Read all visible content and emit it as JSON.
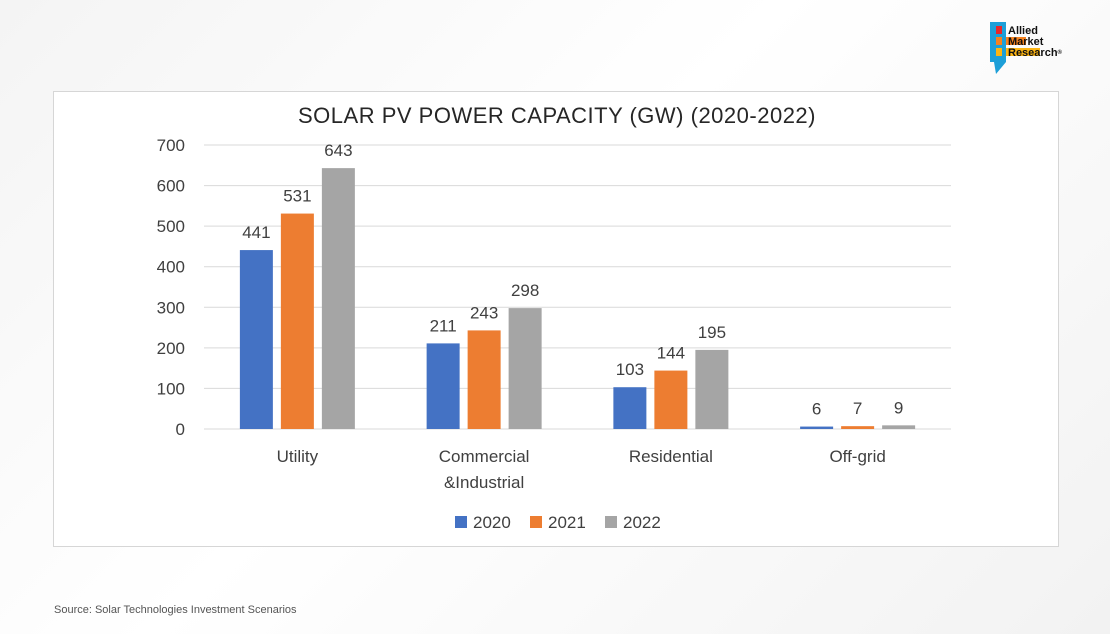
{
  "logo": {
    "line1": "Allied",
    "line2": "Market",
    "line3": "Research",
    "reg": "®"
  },
  "source": "Source: Solar Technologies Investment Scenarios",
  "colors": {
    "2020": "#4472c4",
    "2021": "#ed7d31",
    "2022": "#a5a5a5",
    "grid": "#d9d9d9",
    "text": "#404040"
  },
  "chart_data": {
    "type": "bar",
    "title": "SOLAR PV POWER CAPACITY (GW) (2020-2022)",
    "categories": [
      "Utility",
      "Commercial\n&Industrial",
      "Residential",
      "Off-grid"
    ],
    "series": [
      {
        "name": "2020",
        "values": [
          441,
          211,
          103,
          6
        ]
      },
      {
        "name": "2021",
        "values": [
          531,
          243,
          144,
          7
        ]
      },
      {
        "name": "2022",
        "values": [
          643,
          298,
          195,
          9
        ]
      }
    ],
    "ylim": [
      0,
      700
    ],
    "yticks": [
      0,
      100,
      200,
      300,
      400,
      500,
      600,
      700
    ],
    "xlabel": "",
    "ylabel": "",
    "grid": true,
    "legend": "bottom"
  }
}
